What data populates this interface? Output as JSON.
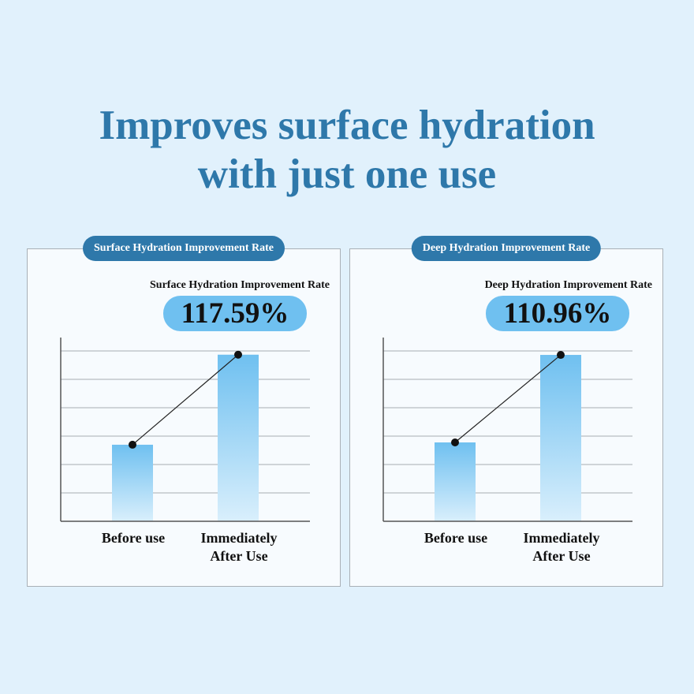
{
  "headline": {
    "line1": "Improves surface hydration",
    "line2": "with just one use"
  },
  "chart_data": [
    {
      "type": "bar",
      "title": "Surface Hydration Improvement Rate",
      "metric_label": "Surface Hydration Improvement Rate",
      "metric_value": "117.59%",
      "categories": [
        "Before use",
        "Immediately After Use"
      ],
      "category_lines": [
        [
          "Before use"
        ],
        [
          "Immediately",
          "After Use"
        ]
      ],
      "values": [
        100,
        217.59
      ],
      "ylim": [
        0,
        240
      ],
      "grid": true,
      "trend_line": true,
      "bar_color": "#6fc0f0"
    },
    {
      "type": "bar",
      "title": "Deep Hydration Improvement Rate",
      "metric_label": "Deep Hydration Improvement Rate",
      "metric_value": "110.96%",
      "categories": [
        "Before use",
        "Immediately After Use"
      ],
      "category_lines": [
        [
          "Before use"
        ],
        [
          "Immediately",
          "After Use"
        ]
      ],
      "values": [
        100,
        210.96
      ],
      "ylim": [
        0,
        233
      ],
      "grid": true,
      "trend_line": true,
      "bar_color": "#6fc0f0"
    }
  ],
  "colors": {
    "accent": "#2e78aa",
    "background": "#e1f1fc",
    "pill": "#6fc0f0"
  }
}
